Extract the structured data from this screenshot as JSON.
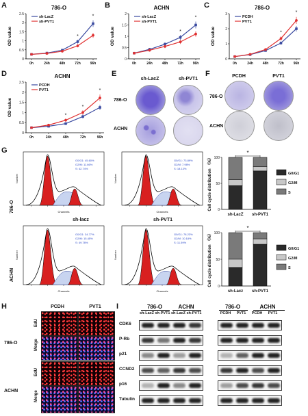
{
  "figure": {
    "panel_letters": [
      "A",
      "B",
      "C",
      "D",
      "E",
      "F",
      "G",
      "H",
      "I"
    ],
    "panelE": {
      "col_labels": [
        "sh-LacZ",
        "sh-PVT1"
      ],
      "row_labels": [
        "786-O",
        "ACHN"
      ]
    },
    "panelF": {
      "col_labels": [
        "PCDH",
        "PVT1"
      ],
      "row_labels": [
        "786-O",
        "ACHN"
      ]
    },
    "panelG": {
      "row_labels": [
        "786-O",
        "ACHN"
      ],
      "flow_titles": [
        "sh-lacz",
        "sh-PVT1"
      ],
      "flow_stats": [
        [
          "G0/G1: 45.60%",
          "G2/M: 11.66%",
          "S: 42.74%"
        ],
        [
          "G0/G1: 73.89%",
          "G2/M: 7.98%",
          "S: 18.13%"
        ],
        [
          "G0/G1: 34.77%",
          "G2/M: 15.45%",
          "S: 49.78%"
        ],
        [
          "G0/G1: 78.23%",
          "G2/M: 10.18%",
          "S: 11.59%"
        ]
      ],
      "flow_xlabel": "Channels",
      "flow_ylabel": "Number"
    },
    "panelH": {
      "col_labels": [
        "PCDH",
        "PVT1"
      ],
      "row_labels": [
        "EdU",
        "Merge",
        "EdU",
        "Merge"
      ],
      "group_labels": [
        "786-O",
        "ACHN"
      ]
    },
    "panelI": {
      "left": {
        "cells": [
          "786-O",
          "ACHN"
        ],
        "lanes": [
          "sh-LacZ",
          "sh-PVT1",
          "sh-LacZ",
          "sh-PVT1"
        ]
      },
      "right": {
        "cells": [
          "786-O",
          "ACHN"
        ],
        "lanes": [
          "PCDH",
          "PVT1",
          "PCDH",
          "PVT1"
        ]
      },
      "proteins": [
        "CDK6",
        "P-Rb",
        "p21",
        "CCND2",
        "p16",
        "Tubulin"
      ]
    }
  },
  "chart_data": [
    {
      "type": "line",
      "title": "786-O",
      "xlabel": "",
      "ylabel": "OD value",
      "categories": [
        "0h",
        "24h",
        "48h",
        "72h",
        "96h"
      ],
      "ylim": [
        0,
        2.5
      ],
      "yticks": [
        0,
        0.5,
        1.0,
        1.5,
        2.0,
        2.5
      ],
      "series": [
        {
          "name": "sh-LacZ",
          "color": "#3a4aa0",
          "values": [
            0.25,
            0.32,
            0.48,
            0.95,
            1.95
          ]
        },
        {
          "name": "sh-PVT1",
          "color": "#e03030",
          "values": [
            0.25,
            0.3,
            0.42,
            0.72,
            1.3
          ]
        }
      ],
      "significance": [
        "",
        "",
        "",
        "*",
        "*"
      ]
    },
    {
      "type": "line",
      "title": "ACHN",
      "xlabel": "",
      "ylabel": "OD value",
      "categories": [
        "0h",
        "24h",
        "48h",
        "72h",
        "96h"
      ],
      "ylim": [
        0,
        2.0
      ],
      "yticks": [
        0,
        0.5,
        1.0,
        1.5,
        2.0
      ],
      "series": [
        {
          "name": "sh-LacZ",
          "color": "#3a4aa0",
          "values": [
            0.25,
            0.42,
            0.65,
            0.95,
            1.5
          ]
        },
        {
          "name": "sh-PVT1",
          "color": "#e03030",
          "values": [
            0.25,
            0.38,
            0.55,
            0.75,
            1.1
          ]
        }
      ],
      "significance": [
        "",
        "",
        "",
        "*",
        "*"
      ]
    },
    {
      "type": "line",
      "title": "786-O",
      "xlabel": "",
      "ylabel": "OD value",
      "categories": [
        "0h",
        "24h",
        "48h",
        "72h",
        "96h"
      ],
      "ylim": [
        0,
        3
      ],
      "yticks": [
        0,
        1,
        2,
        3
      ],
      "series": [
        {
          "name": "PCDH",
          "color": "#3a4aa0",
          "values": [
            0.15,
            0.28,
            0.55,
            1.05,
            2.0
          ]
        },
        {
          "name": "PVT1",
          "color": "#e03030",
          "values": [
            0.15,
            0.3,
            0.62,
            1.35,
            2.55
          ]
        }
      ],
      "significance": [
        "",
        "",
        "",
        "*",
        "*"
      ]
    },
    {
      "type": "line",
      "title": "ACHN",
      "xlabel": "",
      "ylabel": "OD value",
      "categories": [
        "0h",
        "24h",
        "48h",
        "72h",
        "96h"
      ],
      "ylim": [
        0,
        2.5
      ],
      "yticks": [
        0,
        0.5,
        1.0,
        1.5,
        2.0,
        2.5
      ],
      "series": [
        {
          "name": "PCDH",
          "color": "#3a4aa0",
          "values": [
            0.25,
            0.32,
            0.45,
            0.8,
            1.25
          ]
        },
        {
          "name": "PVT1",
          "color": "#e03030",
          "values": [
            0.25,
            0.38,
            0.62,
            1.0,
            1.72
          ]
        }
      ],
      "significance": [
        "",
        "",
        "*",
        "*",
        "*"
      ]
    },
    {
      "type": "bar",
      "stacked": true,
      "xlabel": "",
      "ylabel": "Cell cycle distribution （%）",
      "categories": [
        "sh-LacZ",
        "sh-PVT1"
      ],
      "ylim": [
        0,
        100
      ],
      "yticks": [
        0,
        50,
        100
      ],
      "series": [
        {
          "name": "S",
          "color": "#7a7a7a",
          "values": [
            42.7,
            18.1
          ]
        },
        {
          "name": "G2/M",
          "color": "#c8c8c8",
          "values": [
            11.7,
            8.0
          ]
        },
        {
          "name": "G0/G1",
          "color": "#2a2a2a",
          "values": [
            45.6,
            73.9
          ]
        }
      ],
      "significance": "*"
    },
    {
      "type": "bar",
      "stacked": true,
      "xlabel": "",
      "ylabel": "Cell cycle distribution （%）",
      "categories": [
        "sh-Lacz",
        "sh-PVT1"
      ],
      "ylim": [
        0,
        100
      ],
      "yticks": [
        0,
        50,
        100
      ],
      "series": [
        {
          "name": "S",
          "color": "#7a7a7a",
          "values": [
            49.8,
            11.6
          ]
        },
        {
          "name": "G2/M",
          "color": "#c8c8c8",
          "values": [
            15.4,
            10.2
          ]
        },
        {
          "name": "G0/G1",
          "color": "#2a2a2a",
          "values": [
            34.8,
            78.2
          ]
        }
      ],
      "significance": "*"
    }
  ]
}
